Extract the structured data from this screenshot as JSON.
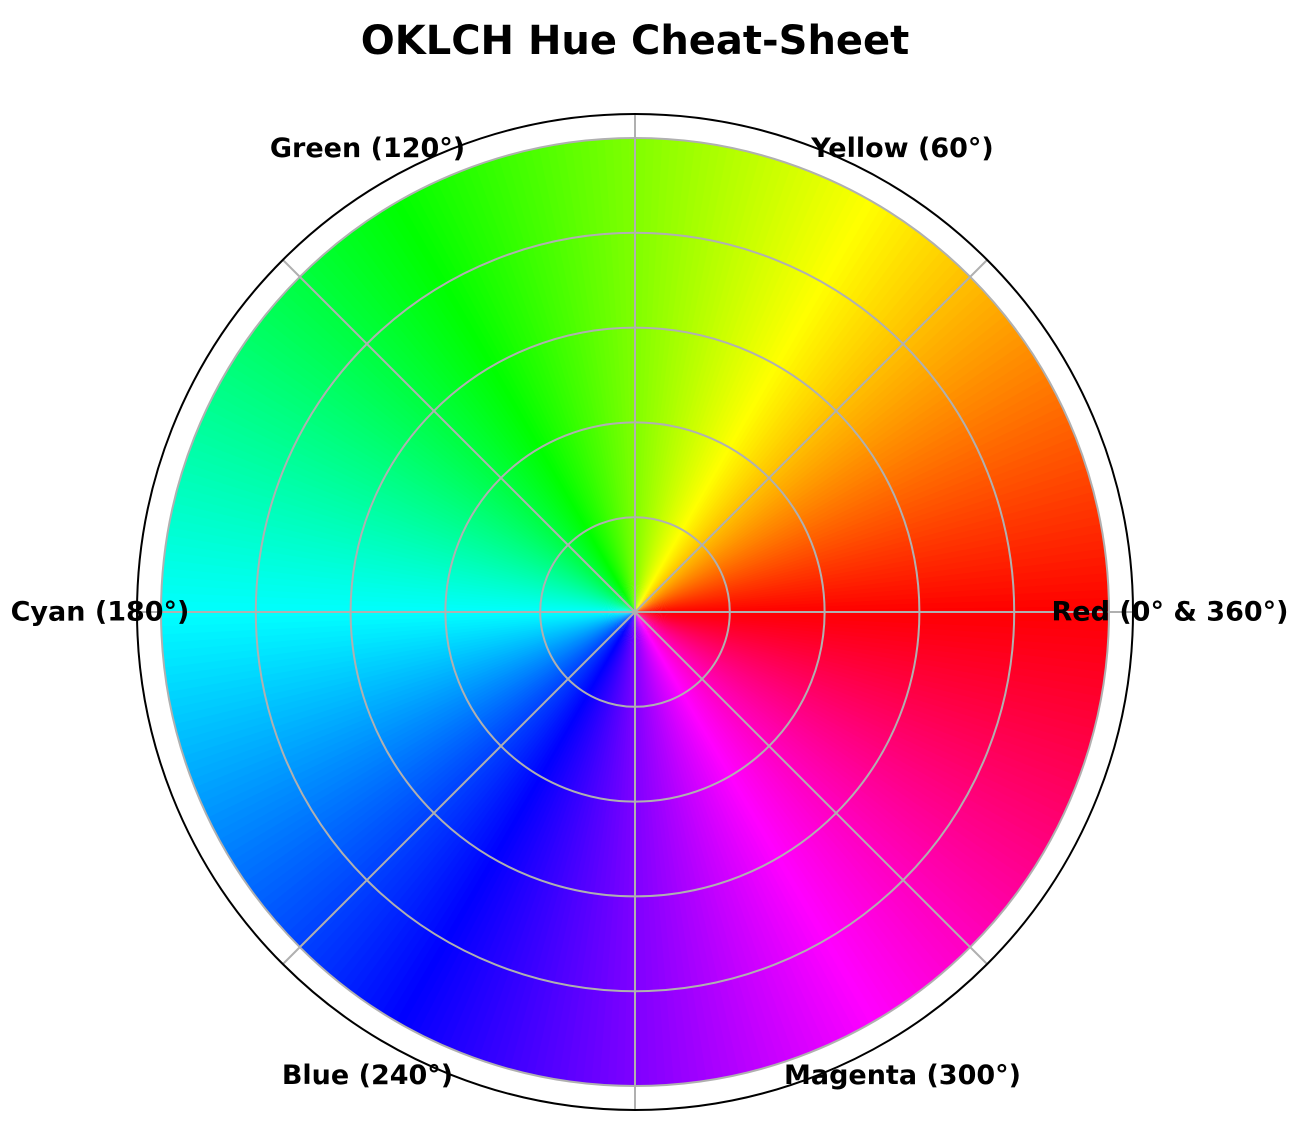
{
  "chart_data": {
    "type": "polar-hue-wheel",
    "title": "OKLCH Hue Cheat-Sheet",
    "hue_range": [
      0,
      360
    ],
    "direction": "counterclockwise",
    "zero_location": "east",
    "labels": [
      {
        "hue": 0,
        "text": "Red (0° & 360°)"
      },
      {
        "hue": 60,
        "text": "Yellow (60°)"
      },
      {
        "hue": 120,
        "text": "Green (120°)"
      },
      {
        "hue": 180,
        "text": "Cyan (180°)"
      },
      {
        "hue": 240,
        "text": "Blue (240°)"
      },
      {
        "hue": 300,
        "text": "Magenta (300°)"
      }
    ],
    "grid": true,
    "grid_rings": 5,
    "grid_spokes_deg": [
      0,
      45,
      90,
      135,
      180,
      225,
      270,
      315
    ],
    "colors": {
      "grid": "#b0b0b0",
      "frame": "#000000",
      "background": "#ffffff"
    }
  }
}
